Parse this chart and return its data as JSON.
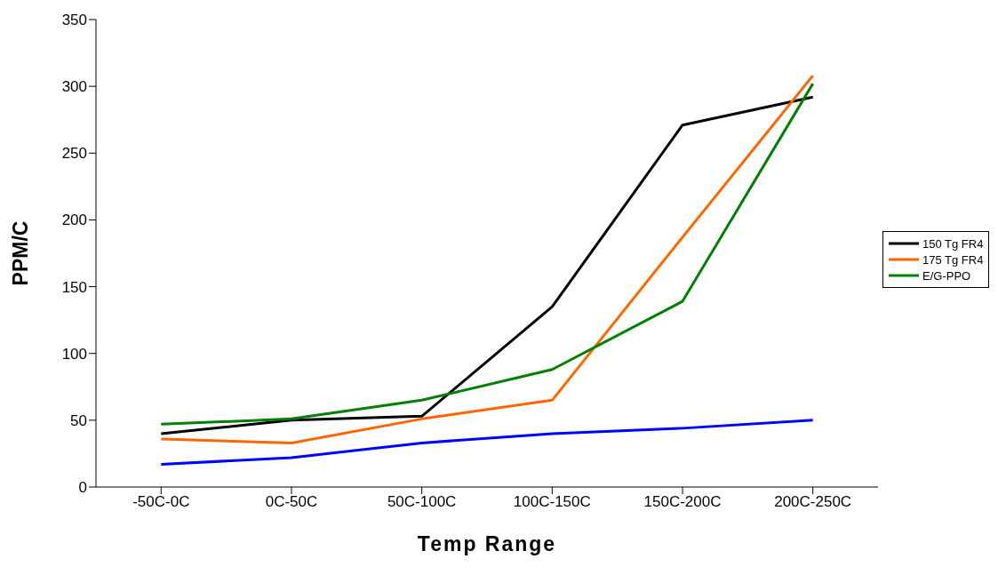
{
  "chart_data": {
    "type": "line",
    "xlabel": "Temp Range",
    "ylabel": "PPM/C",
    "categories": [
      "-50C-0C",
      "0C-50C",
      "50C-100C",
      "100C-150C",
      "150C-200C",
      "200C-250C"
    ],
    "series": [
      {
        "name": "150 Tg FR4",
        "color": "#000000",
        "values": [
          40,
          50,
          53,
          135,
          271,
          292
        ]
      },
      {
        "name": "175 Tg FR4",
        "color": "#ff6600",
        "values": [
          36,
          33,
          51,
          65,
          187,
          308
        ]
      },
      {
        "name": "E/G-PPO",
        "color": "#008000",
        "values": [
          47,
          51,
          65,
          88,
          139,
          302
        ]
      },
      {
        "color": "#0000ff",
        "values": [
          17,
          22,
          33,
          40,
          44,
          50
        ]
      }
    ],
    "ylim": [
      0,
      350
    ],
    "yticks": [
      0,
      50,
      100,
      150,
      200,
      250,
      300,
      350
    ],
    "grid": false,
    "legend": "right",
    "marker": "none",
    "line_style": "solid"
  }
}
